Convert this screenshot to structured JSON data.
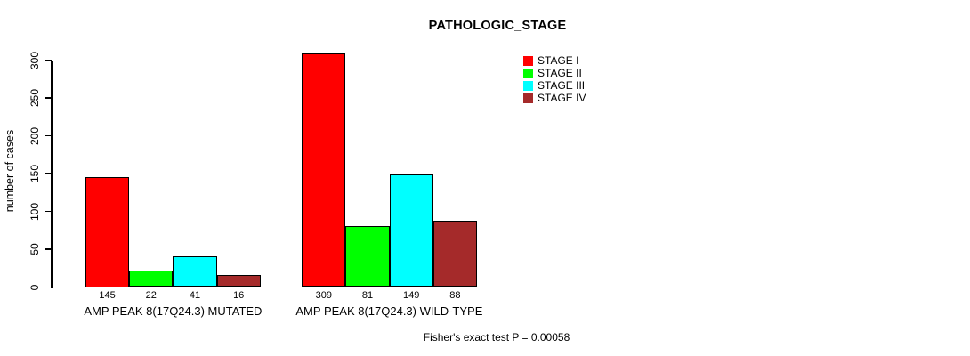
{
  "title": "PATHOLOGIC_STAGE",
  "chart_data": {
    "type": "bar",
    "title": "PATHOLOGIC_STAGE",
    "xlabel": "",
    "ylabel": "number of cases",
    "ylim": [
      0,
      300
    ],
    "yticks": [
      0,
      50,
      100,
      150,
      200,
      250,
      300
    ],
    "grid": false,
    "legend_position": "top-right",
    "categories": [
      "AMP PEAK 8(17Q24.3) MUTATED",
      "AMP PEAK 8(17Q24.3) WILD-TYPE"
    ],
    "groups": [
      {
        "label": "AMP PEAK 8(17Q24.3) MUTATED",
        "values": [
          145,
          22,
          41,
          16
        ]
      },
      {
        "label": "AMP PEAK 8(17Q24.3) WILD-TYPE",
        "values": [
          309,
          81,
          149,
          88
        ]
      }
    ],
    "series": [
      {
        "name": "STAGE I",
        "color": "#ff0000",
        "values": [
          145,
          309
        ]
      },
      {
        "name": "STAGE II",
        "color": "#00ff00",
        "values": [
          22,
          81
        ]
      },
      {
        "name": "STAGE III",
        "color": "#00ffff",
        "values": [
          41,
          149
        ]
      },
      {
        "name": "STAGE IV",
        "color": "#a52a2a",
        "values": [
          16,
          88
        ]
      }
    ],
    "annotation": "Fisher's exact test P = 0.00058"
  }
}
